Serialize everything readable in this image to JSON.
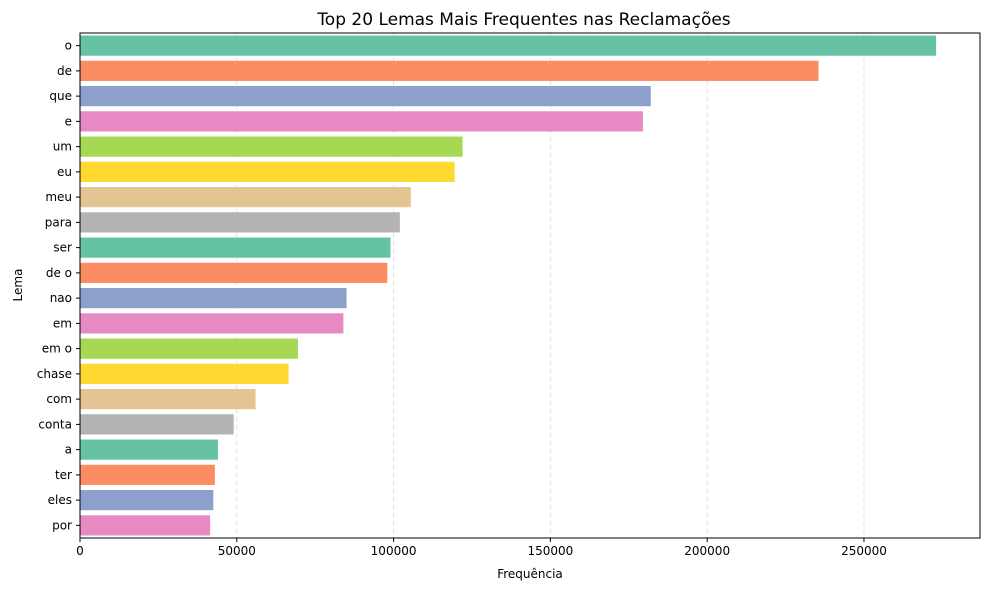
{
  "chart_data": {
    "type": "bar",
    "orientation": "horizontal",
    "title": "Top 20 Lemas Mais Frequentes nas Reclamações",
    "xlabel": "Frequência",
    "ylabel": "Lema",
    "categories": [
      "o",
      "de",
      "que",
      "e",
      "um",
      "eu",
      "meu",
      "para",
      "ser",
      "de o",
      "nao",
      "em",
      "em o",
      "chase",
      "com",
      "conta",
      "a",
      "ter",
      "eles",
      "por"
    ],
    "values": [
      273000,
      235500,
      182000,
      179500,
      122000,
      119500,
      105500,
      102000,
      99000,
      98000,
      85000,
      84000,
      69500,
      66500,
      56000,
      49000,
      44000,
      43000,
      42500,
      41500
    ],
    "xlim": [
      0,
      287000
    ],
    "xticks": [
      0,
      50000,
      100000,
      150000,
      200000,
      250000
    ],
    "xtick_labels": [
      "0",
      "50000",
      "100000",
      "150000",
      "200000",
      "250000"
    ],
    "grid": "x-dashed",
    "palette": [
      "#66c2a5",
      "#fc8d62",
      "#8da0cb",
      "#e78ac3",
      "#a6d854",
      "#ffd92f",
      "#e5c494",
      "#b3b3b3"
    ]
  }
}
